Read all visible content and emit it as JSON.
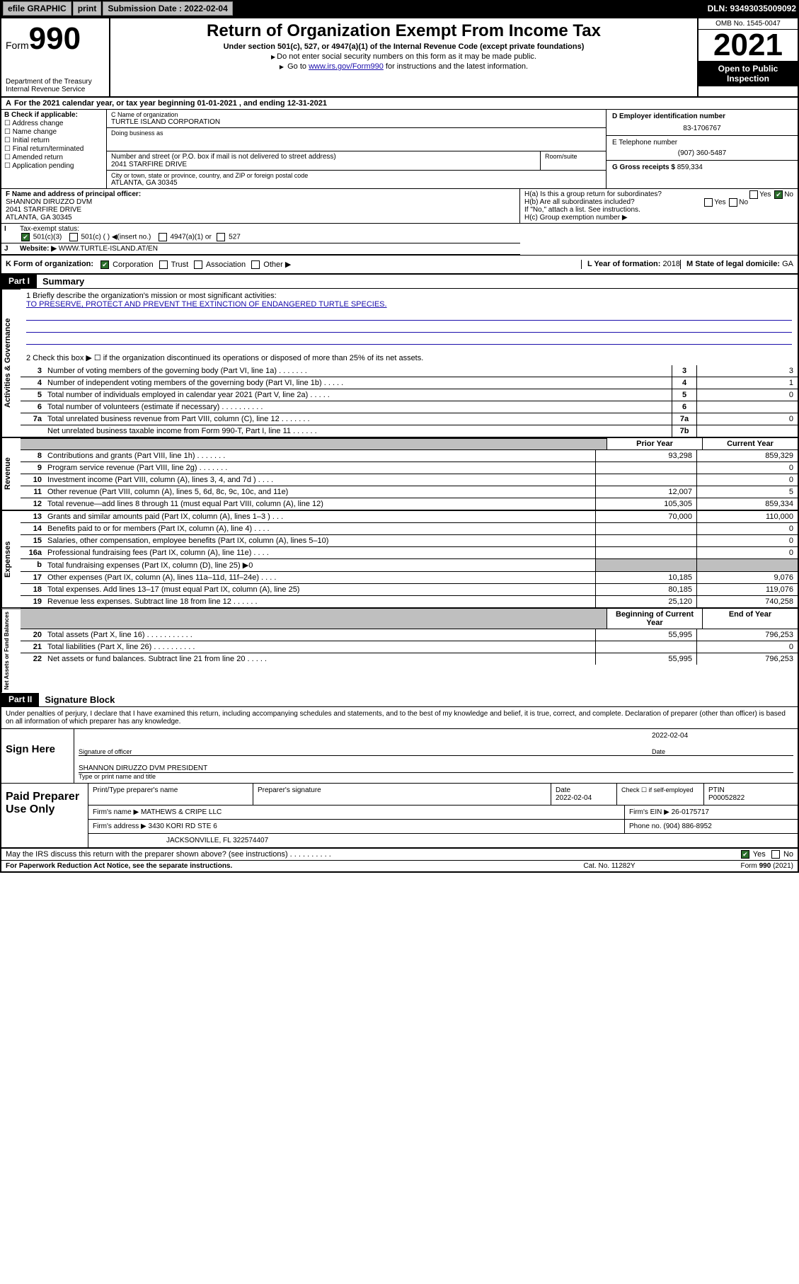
{
  "toolbar": {
    "efile": "efile GRAPHIC",
    "print": "print",
    "submission_label": "Submission Date : 2022-02-04",
    "dln": "DLN: 93493035009092"
  },
  "header": {
    "form_label": "Form",
    "form_num": "990",
    "dept": "Department of the Treasury",
    "irs": "Internal Revenue Service",
    "title": "Return of Organization Exempt From Income Tax",
    "sub1": "Under section 501(c), 527, or 4947(a)(1) of the Internal Revenue Code (except private foundations)",
    "sub2": "Do not enter social security numbers on this form as it may be made public.",
    "sub3_pre": "Go to ",
    "sub3_link": "www.irs.gov/Form990",
    "sub3_post": " for instructions and the latest information.",
    "omb": "OMB No. 1545-0047",
    "year": "2021",
    "open": "Open to Public Inspection"
  },
  "row_a": "For the 2021 calendar year, or tax year beginning 01-01-2021   , and ending 12-31-2021",
  "col_b": {
    "hdr": "B Check if applicable:",
    "items": [
      "Address change",
      "Name change",
      "Initial return",
      "Final return/terminated",
      "Amended return",
      "Application pending"
    ]
  },
  "col_c": {
    "name_label": "C Name of organization",
    "name": "TURTLE ISLAND CORPORATION",
    "dba_label": "Doing business as",
    "dba": "",
    "street_label": "Number and street (or P.O. box if mail is not delivered to street address)",
    "street": "2041 STARFIRE DRIVE",
    "suite_label": "Room/suite",
    "suite": "",
    "city_label": "City or town, state or province, country, and ZIP or foreign postal code",
    "city": "ATLANTA, GA  30345"
  },
  "col_deg": {
    "d_label": "D Employer identification number",
    "d_val": "83-1706767",
    "e_label": "E Telephone number",
    "e_val": "(907) 360-5487",
    "g_label": "G Gross receipts $",
    "g_val": "859,334"
  },
  "row_f": {
    "label": "F Name and address of principal officer:",
    "name": "SHANNON DIRUZZO DVM",
    "street": "2041 STARFIRE DRIVE",
    "city": "ATLANTA, GA  30345"
  },
  "row_h": {
    "ha": "H(a)  Is this a group return for subordinates?",
    "ha_yes": "Yes",
    "ha_no": "No",
    "hb": "H(b)  Are all subordinates included?",
    "hb_yes": "Yes",
    "hb_no": "No",
    "hb_note": "If \"No,\" attach a list. See instructions.",
    "hc": "H(c)  Group exemption number ▶"
  },
  "row_i": {
    "label": "Tax-exempt status:",
    "opt1": "501(c)(3)",
    "opt2": "501(c) (  ) ◀(insert no.)",
    "opt3": "4947(a)(1) or",
    "opt4": "527"
  },
  "row_j": {
    "label": "Website: ▶",
    "val": "WWW.TURTLE-ISLAND.AT/EN"
  },
  "row_k": {
    "label": "K Form of organization:",
    "opts": [
      "Corporation",
      "Trust",
      "Association",
      "Other ▶"
    ],
    "l_label": "L Year of formation:",
    "l_val": "2018",
    "m_label": "M State of legal domicile:",
    "m_val": "GA"
  },
  "parts": {
    "p1": "Part I",
    "p1_title": "Summary",
    "p2": "Part II",
    "p2_title": "Signature Block"
  },
  "mission": {
    "line1_label": "1  Briefly describe the organization's mission or most significant activities:",
    "line1_val": "TO PRESERVE, PROTECT AND PREVENT THE EXTINCTION OF ENDANGERED TURTLE SPECIES.",
    "line2": "2   Check this box ▶ ☐  if the organization discontinued its operations or disposed of more than 25% of its net assets."
  },
  "gov_lines": [
    {
      "n": "3",
      "txt": "Number of voting members of the governing body (Part VI, line 1a)   .    .    .    .    .    .    .",
      "c": "3",
      "v": "3"
    },
    {
      "n": "4",
      "txt": "Number of independent voting members of the governing body (Part VI, line 1b)   .    .    .    .    .",
      "c": "4",
      "v": "1"
    },
    {
      "n": "5",
      "txt": "Total number of individuals employed in calendar year 2021 (Part V, line 2a)   .    .    .    .    .",
      "c": "5",
      "v": "0"
    },
    {
      "n": "6",
      "txt": "Total number of volunteers (estimate if necessary)   .    .    .    .    .    .    .    .    .    .",
      "c": "6",
      "v": ""
    },
    {
      "n": "7a",
      "txt": "Total unrelated business revenue from Part VIII, column (C), line 12   .    .    .    .    .    .    .",
      "c": "7a",
      "v": "0"
    },
    {
      "n": "",
      "txt": "Net unrelated business taxable income from Form 990-T, Part I, line 11   .    .    .    .    .    .",
      "c": "7b",
      "v": ""
    }
  ],
  "col_hdr": {
    "prior": "Prior Year",
    "current": "Current Year",
    "begin": "Beginning of Current Year",
    "end": "End of Year"
  },
  "rev_lines": [
    {
      "n": "8",
      "txt": "Contributions and grants (Part VIII, line 1h)   .    .    .    .    .    .    .",
      "p": "93,298",
      "c": "859,329"
    },
    {
      "n": "9",
      "txt": "Program service revenue (Part VIII, line 2g)   .    .    .    .    .    .    .",
      "p": "",
      "c": "0"
    },
    {
      "n": "10",
      "txt": "Investment income (Part VIII, column (A), lines 3, 4, and 7d )   .    .    .    .",
      "p": "",
      "c": "0"
    },
    {
      "n": "11",
      "txt": "Other revenue (Part VIII, column (A), lines 5, 6d, 8c, 9c, 10c, and 11e)",
      "p": "12,007",
      "c": "5"
    },
    {
      "n": "12",
      "txt": "Total revenue—add lines 8 through 11 (must equal Part VIII, column (A), line 12)",
      "p": "105,305",
      "c": "859,334"
    }
  ],
  "exp_lines": [
    {
      "n": "13",
      "txt": "Grants and similar amounts paid (Part IX, column (A), lines 1–3 )   .    .    .",
      "p": "70,000",
      "c": "110,000"
    },
    {
      "n": "14",
      "txt": "Benefits paid to or for members (Part IX, column (A), line 4)   .    .    .    .",
      "p": "",
      "c": "0"
    },
    {
      "n": "15",
      "txt": "Salaries, other compensation, employee benefits (Part IX, column (A), lines 5–10)",
      "p": "",
      "c": "0"
    },
    {
      "n": "16a",
      "txt": "Professional fundraising fees (Part IX, column (A), line 11e)   .    .    .    .",
      "p": "",
      "c": "0"
    },
    {
      "n": "b",
      "txt": "Total fundraising expenses (Part IX, column (D), line 25) ▶0",
      "p": "grey",
      "c": "grey"
    },
    {
      "n": "17",
      "txt": "Other expenses (Part IX, column (A), lines 11a–11d, 11f–24e)   .    .    .    .",
      "p": "10,185",
      "c": "9,076"
    },
    {
      "n": "18",
      "txt": "Total expenses. Add lines 13–17 (must equal Part IX, column (A), line 25)",
      "p": "80,185",
      "c": "119,076"
    },
    {
      "n": "19",
      "txt": "Revenue less expenses. Subtract line 18 from line 12   .    .    .    .    .    .",
      "p": "25,120",
      "c": "740,258"
    }
  ],
  "na_lines": [
    {
      "n": "20",
      "txt": "Total assets (Part X, line 16)   .    .    .    .    .    .    .    .    .    .    .",
      "p": "55,995",
      "c": "796,253"
    },
    {
      "n": "21",
      "txt": "Total liabilities (Part X, line 26)   .    .    .    .    .    .    .    .    .    .",
      "p": "",
      "c": "0"
    },
    {
      "n": "22",
      "txt": "Net assets or fund balances. Subtract line 21 from line 20   .    .    .    .    .",
      "p": "55,995",
      "c": "796,253"
    }
  ],
  "vlabels": {
    "gov": "Activities & Governance",
    "rev": "Revenue",
    "exp": "Expenses",
    "na": "Net Assets or Fund Balances"
  },
  "penalty": "Under penalties of perjury, I declare that I have examined this return, including accompanying schedules and statements, and to the best of my knowledge and belief, it is true, correct, and complete. Declaration of preparer (other than officer) is based on all information of which preparer has any knowledge.",
  "sign": {
    "label": "Sign Here",
    "sig_of_officer": "Signature of officer",
    "date_label": "Date",
    "date": "2022-02-04",
    "name": "SHANNON DIRUZZO DVM PRESIDENT",
    "name_label": "Type or print name and title"
  },
  "prep": {
    "label": "Paid Preparer Use Only",
    "h1": "Print/Type preparer's name",
    "h2": "Preparer's signature",
    "h3": "Date",
    "h3v": "2022-02-04",
    "h4": "Check ☐ if self-employed",
    "h5": "PTIN",
    "h5v": "P00052822",
    "firm_name_l": "Firm's name    ▶",
    "firm_name": "MATHEWS & CRIPE LLC",
    "firm_ein_l": "Firm's EIN ▶",
    "firm_ein": "26-0175717",
    "firm_addr_l": "Firm's address ▶",
    "firm_addr1": "3430 KORI RD STE 6",
    "firm_addr2": "JACKSONVILLE, FL  322574407",
    "phone_l": "Phone no.",
    "phone": "(904) 886-8952"
  },
  "discuss": {
    "txt": "May the IRS discuss this return with the preparer shown above? (see instructions)   .    .    .    .    .    .    .    .    .    .",
    "yes": "Yes",
    "no": "No"
  },
  "footer": {
    "l": "For Paperwork Reduction Act Notice, see the separate instructions.",
    "m": "Cat. No. 11282Y",
    "r": "Form 990 (2021)"
  }
}
